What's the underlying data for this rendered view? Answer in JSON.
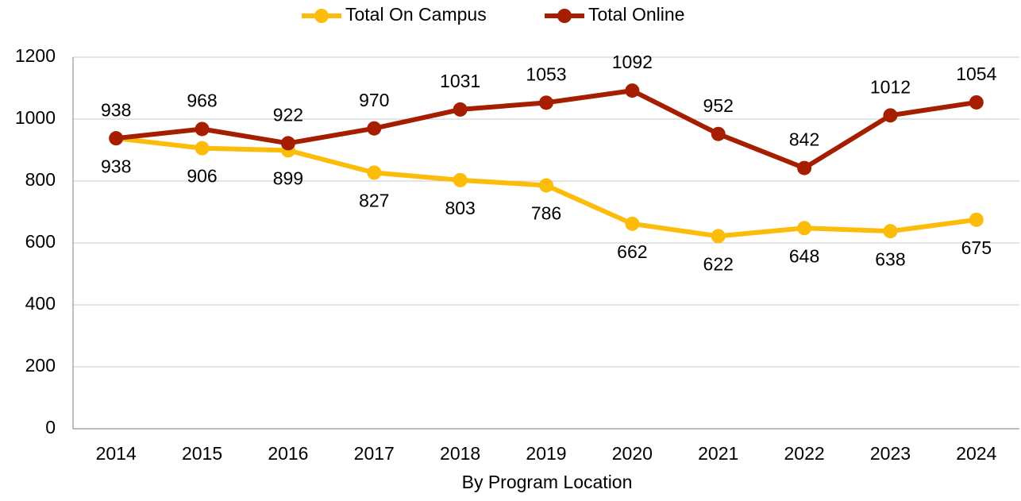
{
  "chart_data": {
    "type": "line",
    "categories": [
      "2014",
      "2015",
      "2016",
      "2017",
      "2018",
      "2019",
      "2020",
      "2021",
      "2022",
      "2023",
      "2024"
    ],
    "series": [
      {
        "name": "Total On Campus",
        "color": "#fcbc0a",
        "values": [
          938,
          906,
          899,
          827,
          803,
          786,
          662,
          622,
          648,
          638,
          675
        ]
      },
      {
        "name": "Total Online",
        "color": "#a61e00",
        "values": [
          938,
          968,
          922,
          970,
          1031,
          1053,
          1092,
          952,
          842,
          1012,
          1054
        ]
      }
    ],
    "x_label": "By Program Location",
    "ylim": [
      0,
      1200
    ],
    "yticks": [
      0,
      200,
      400,
      600,
      800,
      1000,
      1200
    ],
    "grid": true,
    "legend": "top"
  }
}
